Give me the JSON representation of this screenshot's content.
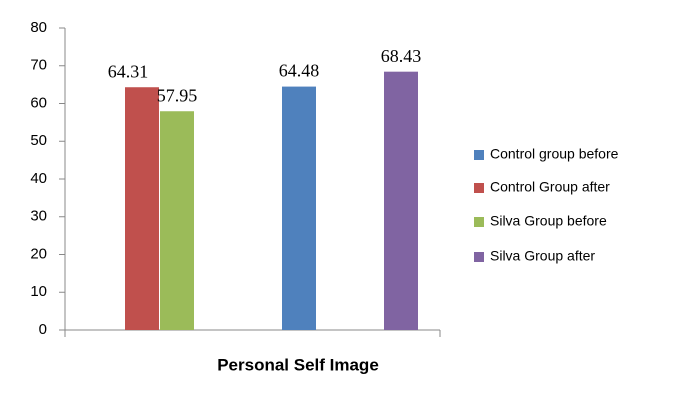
{
  "chart_data": {
    "type": "bar",
    "categories": [
      "Personal Self Image"
    ],
    "series": [
      {
        "name": "Control group before",
        "color": "#4f81bd",
        "values": [
          64.48
        ]
      },
      {
        "name": "Control Group after",
        "color": "#c0504d",
        "values": [
          64.31
        ]
      },
      {
        "name": "Silva Group before",
        "color": "#9bbb59",
        "values": [
          57.95
        ]
      },
      {
        "name": "Silva Group after",
        "color": "#8064a2",
        "values": [
          68.43
        ]
      }
    ],
    "ylim": [
      0,
      80
    ],
    "yticks": [
      0,
      10,
      20,
      30,
      40,
      50,
      60,
      70,
      80
    ],
    "grid": false,
    "legend": "right"
  }
}
